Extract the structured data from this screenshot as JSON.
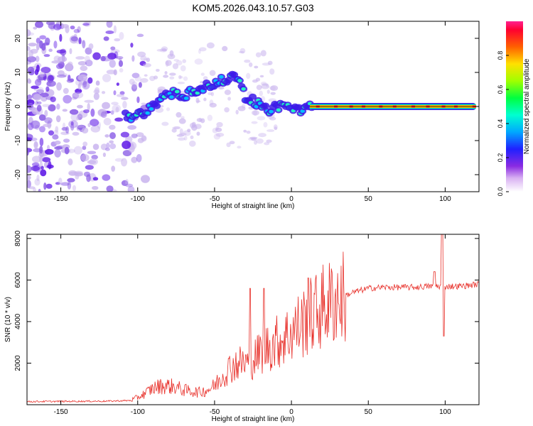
{
  "title": "KOM5.2026.043.10.57.G03",
  "colors": {
    "scatter_light": "#c9b4ee",
    "scatter_mid": "#8a5ce6",
    "scatter_dark": "#5a12e6",
    "snr_line": "#e8302a",
    "axis": "#000000"
  },
  "chart_data": [
    {
      "type": "heatmap",
      "title": "KOM5.2026.043.10.57.G03",
      "xlabel": "Height of straight line (km)",
      "ylabel": "Frequency (Hz)",
      "xlim": [
        -172,
        122
      ],
      "ylim": [
        -25,
        25
      ],
      "xticks": [
        -150,
        -100,
        -50,
        0,
        50,
        100
      ],
      "yticks": [
        -20,
        -10,
        0,
        10,
        20
      ],
      "colorbar": {
        "label": "Normalized spectral amplitude",
        "ticks": [
          0.0,
          0.2,
          0.4,
          0.6,
          0.8
        ],
        "range": [
          0,
          1
        ]
      },
      "ridge": {
        "x": [
          -105,
          -100,
          -95,
          -90,
          -85,
          -80,
          -75,
          -70,
          -65,
          -60,
          -55,
          -50,
          -45,
          -40,
          -35,
          -30,
          -25,
          -20,
          -15,
          -10,
          -5,
          0,
          5,
          10,
          15,
          20,
          30,
          50,
          70,
          90,
          110,
          120
        ],
        "y": [
          -3,
          -2,
          -1.5,
          0,
          2,
          4,
          4,
          3,
          4.5,
          5,
          6,
          7,
          7.5,
          8,
          9,
          3,
          2,
          0,
          -1,
          0,
          0.5,
          0,
          -1,
          -0.5,
          0,
          0,
          0,
          0,
          0,
          0,
          0,
          0
        ]
      },
      "tone": {
        "y": 0,
        "x_from": 12,
        "x_to": 120,
        "amplitude": 0.95
      }
    },
    {
      "type": "line",
      "xlabel": "Height of straight line (km)",
      "ylabel": "SNR (10 * v/v)",
      "xlim": [
        -172,
        122
      ],
      "ylim": [
        0,
        8200
      ],
      "xticks": [
        -150,
        -100,
        -50,
        0,
        50,
        100
      ],
      "yticks": [
        2000,
        4000,
        6000,
        8000
      ],
      "envelope": {
        "x": [
          -172,
          -150,
          -120,
          -105,
          -100,
          -95,
          -90,
          -85,
          -80,
          -75,
          -70,
          -65,
          -60,
          -55,
          -50,
          -45,
          -40,
          -35,
          -30,
          -25,
          -20,
          -15,
          -10,
          -5,
          0,
          5,
          10,
          15,
          20,
          25,
          30,
          40,
          50,
          60,
          70,
          80,
          90,
          100,
          110,
          122
        ],
        "y": [
          150,
          160,
          170,
          200,
          350,
          550,
          800,
          900,
          900,
          850,
          700,
          650,
          600,
          700,
          900,
          1400,
          1800,
          2000,
          2000,
          2200,
          2500,
          2800,
          3000,
          3200,
          3500,
          3800,
          4100,
          4400,
          4700,
          4900,
          5100,
          5400,
          5600,
          5650,
          5650,
          5650,
          5700,
          5700,
          5700,
          5800
        ]
      },
      "spikes": [
        {
          "x": -27,
          "y": 5600
        },
        {
          "x": -18,
          "y": 5600
        },
        {
          "x": 11,
          "y": 6100
        },
        {
          "x": 93,
          "y": 6400
        },
        {
          "x": 98,
          "y": 8200
        },
        {
          "x": 99,
          "y": 3300
        }
      ]
    }
  ]
}
